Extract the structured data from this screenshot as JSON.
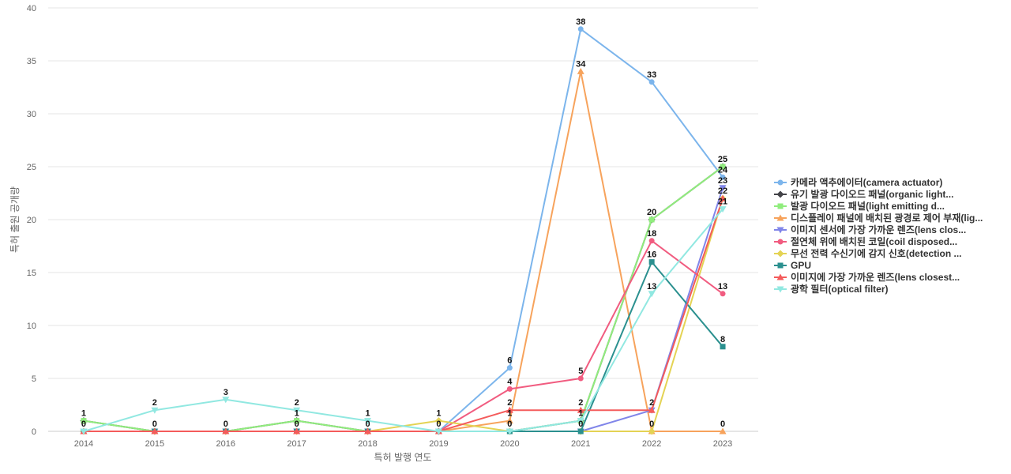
{
  "chart_data": {
    "type": "line",
    "xlabel": "특허 발행 연도",
    "ylabel": "특허 출원 공개량",
    "ylim": [
      0,
      40
    ],
    "yticks": [
      0,
      5,
      10,
      15,
      20,
      25,
      30,
      35,
      40
    ],
    "grid": true,
    "legend_position": "right",
    "x": [
      "2014",
      "2015",
      "2016",
      "2017",
      "2018",
      "2019",
      "2020",
      "2021",
      "2022",
      "2023"
    ],
    "series": [
      {
        "name": "카메라 액추에이터(camera actuator)",
        "color": "#7cb5ec",
        "marker": "circle",
        "values": [
          0,
          0,
          0,
          0,
          0,
          0,
          6,
          38,
          33,
          24
        ]
      },
      {
        "name": "유기 발광 다이오드 패널(organic light...",
        "color": "#434348",
        "marker": "diamond",
        "values": [
          1,
          0,
          0,
          1,
          0,
          0,
          0,
          1,
          20,
          25
        ]
      },
      {
        "name": "발광 다이오드 패널(light emitting d...",
        "color": "#90ed7d",
        "marker": "square",
        "values": [
          1,
          0,
          0,
          1,
          0,
          0,
          0,
          1,
          20,
          25
        ]
      },
      {
        "name": "디스플레이 패널에 배치된 광경로 제어 부재(lig...",
        "color": "#f7a35c",
        "marker": "triangle",
        "values": [
          0,
          0,
          0,
          0,
          0,
          0,
          1,
          34,
          0,
          0
        ]
      },
      {
        "name": "이미지 센서에 가장 가까운 렌즈(lens clos...",
        "color": "#8085e9",
        "marker": "triangle-down",
        "values": [
          0,
          0,
          0,
          0,
          0,
          0,
          0,
          0,
          2,
          23
        ]
      },
      {
        "name": "절연체 위에 배치된 코일(coil disposed...",
        "color": "#f15c80",
        "marker": "circle",
        "values": [
          0,
          0,
          0,
          0,
          0,
          0,
          4,
          5,
          18,
          13
        ]
      },
      {
        "name": "무선 전력 수신기에 감지 신호(detection ...",
        "color": "#e4d354",
        "marker": "diamond",
        "values": [
          0,
          0,
          0,
          0,
          0,
          1,
          0,
          0,
          0,
          22
        ]
      },
      {
        "name": "GPU",
        "color": "#2b908f",
        "marker": "square",
        "values": [
          0,
          0,
          0,
          0,
          0,
          0,
          0,
          0,
          16,
          8
        ]
      },
      {
        "name": "이미지에 가장 가까운 렌즈(lens closest...",
        "color": "#f45b5b",
        "marker": "triangle",
        "values": [
          0,
          0,
          0,
          0,
          0,
          0,
          2,
          2,
          2,
          22
        ]
      },
      {
        "name": "광학 필터(optical filter)",
        "color": "#91e8e1",
        "marker": "triangle-down",
        "values": [
          0,
          2,
          3,
          2,
          1,
          0,
          0,
          1,
          13,
          21
        ]
      }
    ],
    "data_labels": [
      {
        "x": "2014",
        "text": "1",
        "y": 1
      },
      {
        "x": "2014",
        "text": "0",
        "y": 0
      },
      {
        "x": "2015",
        "text": "2",
        "y": 2
      },
      {
        "x": "2015",
        "text": "0",
        "y": 0
      },
      {
        "x": "2016",
        "text": "3",
        "y": 3
      },
      {
        "x": "2016",
        "text": "0",
        "y": 0
      },
      {
        "x": "2017",
        "text": "2",
        "y": 2
      },
      {
        "x": "2017",
        "text": "1",
        "y": 1
      },
      {
        "x": "2017",
        "text": "0",
        "y": 0
      },
      {
        "x": "2018",
        "text": "1",
        "y": 1
      },
      {
        "x": "2018",
        "text": "0",
        "y": 0
      },
      {
        "x": "2019",
        "text": "1",
        "y": 1
      },
      {
        "x": "2019",
        "text": "0",
        "y": 0
      },
      {
        "x": "2020",
        "text": "6",
        "y": 6
      },
      {
        "x": "2020",
        "text": "4",
        "y": 4
      },
      {
        "x": "2020",
        "text": "2",
        "y": 2
      },
      {
        "x": "2020",
        "text": "1",
        "y": 1
      },
      {
        "x": "2020",
        "text": "0",
        "y": 0
      },
      {
        "x": "2021",
        "text": "38",
        "y": 38
      },
      {
        "x": "2021",
        "text": "34",
        "y": 34
      },
      {
        "x": "2021",
        "text": "5",
        "y": 5
      },
      {
        "x": "2021",
        "text": "2",
        "y": 2
      },
      {
        "x": "2021",
        "text": "1",
        "y": 1
      },
      {
        "x": "2021",
        "text": "0",
        "y": 0
      },
      {
        "x": "2022",
        "text": "33",
        "y": 33
      },
      {
        "x": "2022",
        "text": "20",
        "y": 20
      },
      {
        "x": "2022",
        "text": "18",
        "y": 18
      },
      {
        "x": "2022",
        "text": "16",
        "y": 16
      },
      {
        "x": "2022",
        "text": "13",
        "y": 13
      },
      {
        "x": "2022",
        "text": "2",
        "y": 2
      },
      {
        "x": "2022",
        "text": "0",
        "y": 0
      },
      {
        "x": "2023",
        "text": "25",
        "y": 25
      },
      {
        "x": "2023",
        "text": "24",
        "y": 24
      },
      {
        "x": "2023",
        "text": "23",
        "y": 23
      },
      {
        "x": "2023",
        "text": "22",
        "y": 22
      },
      {
        "x": "2023",
        "text": "21",
        "y": 21
      },
      {
        "x": "2023",
        "text": "13",
        "y": 13
      },
      {
        "x": "2023",
        "text": "8",
        "y": 8
      },
      {
        "x": "2023",
        "text": "0",
        "y": 0
      }
    ]
  }
}
